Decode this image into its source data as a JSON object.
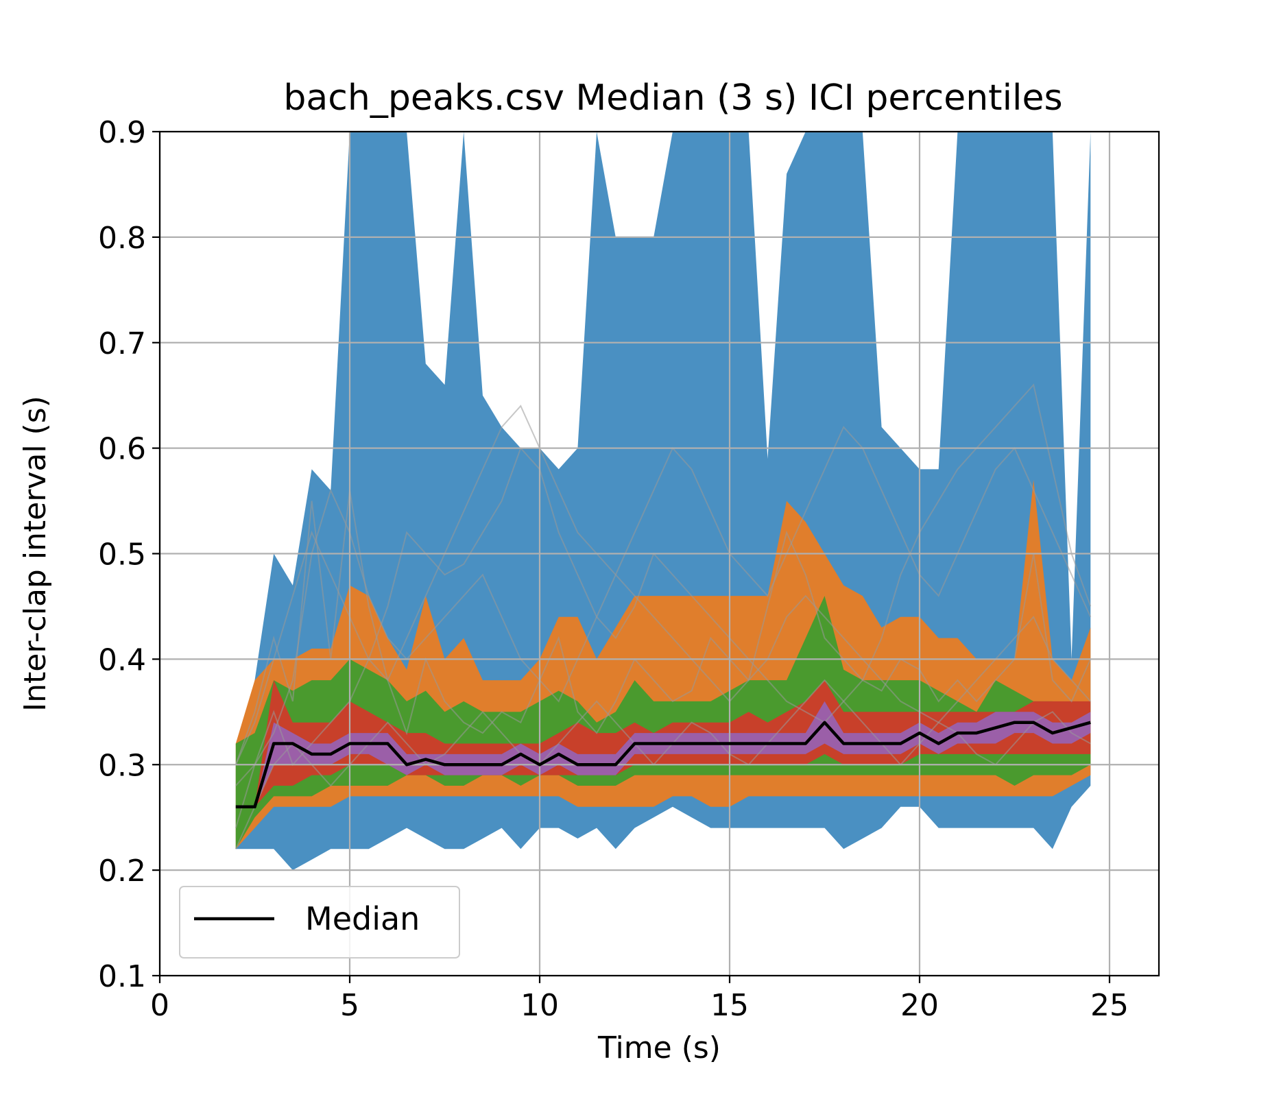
{
  "chart_data": {
    "type": "area",
    "title": "bach_peaks.csv Median (3 s) ICI percentiles",
    "xlabel": "Time (s)",
    "ylabel": "Inter-clap interval (s)",
    "xlim": [
      0,
      26.3
    ],
    "ylim": [
      0.1,
      0.9
    ],
    "xticks": [
      0,
      5,
      10,
      15,
      20,
      25
    ],
    "yticks": [
      0.1,
      0.2,
      0.3,
      0.4,
      0.5,
      0.6,
      0.7,
      0.8,
      0.9
    ],
    "xtick_labels": [
      "0",
      "5",
      "10",
      "15",
      "20",
      "25"
    ],
    "ytick_labels": [
      "0.1",
      "0.2",
      "0.3",
      "0.4",
      "0.5",
      "0.6",
      "0.7",
      "0.8",
      "0.9"
    ],
    "grid": true,
    "legend": {
      "placement": "lower-left",
      "entries": [
        "Median"
      ]
    },
    "x": [
      2.0,
      2.5,
      3.0,
      3.5,
      4.0,
      4.5,
      5.0,
      5.5,
      6.0,
      6.5,
      7.0,
      7.5,
      8.0,
      8.5,
      9.0,
      9.5,
      10.0,
      10.5,
      11.0,
      11.5,
      12.0,
      12.5,
      13.0,
      13.5,
      14.0,
      14.5,
      15.0,
      15.5,
      16.0,
      16.5,
      17.0,
      17.5,
      18.0,
      18.5,
      19.0,
      19.5,
      20.0,
      20.5,
      21.0,
      21.5,
      22.0,
      22.5,
      23.0,
      23.5,
      24.0,
      24.5
    ],
    "bands": [
      {
        "color": "#4a90c2",
        "lower": [
          0.22,
          0.22,
          0.22,
          0.2,
          0.21,
          0.22,
          0.22,
          0.22,
          0.23,
          0.24,
          0.23,
          0.22,
          0.22,
          0.23,
          0.24,
          0.22,
          0.24,
          0.24,
          0.23,
          0.24,
          0.22,
          0.24,
          0.25,
          0.26,
          0.25,
          0.24,
          0.24,
          0.24,
          0.24,
          0.24,
          0.24,
          0.24,
          0.22,
          0.23,
          0.24,
          0.26,
          0.26,
          0.24,
          0.24,
          0.24,
          0.24,
          0.24,
          0.24,
          0.22,
          0.26,
          0.28
        ],
        "upper": [
          0.3,
          0.38,
          0.5,
          0.47,
          0.58,
          0.56,
          0.9,
          0.9,
          0.9,
          0.9,
          0.68,
          0.66,
          0.9,
          0.65,
          0.62,
          0.6,
          0.6,
          0.58,
          0.6,
          0.9,
          0.8,
          0.8,
          0.8,
          0.9,
          0.9,
          0.9,
          0.9,
          0.9,
          0.59,
          0.86,
          0.9,
          0.9,
          0.9,
          0.9,
          0.62,
          0.6,
          0.58,
          0.58,
          0.9,
          0.9,
          0.9,
          0.9,
          0.9,
          0.9,
          0.4,
          0.9
        ]
      },
      {
        "color": "#e07e2c",
        "lower": [
          0.22,
          0.24,
          0.26,
          0.26,
          0.26,
          0.26,
          0.27,
          0.27,
          0.27,
          0.27,
          0.27,
          0.27,
          0.27,
          0.27,
          0.27,
          0.27,
          0.27,
          0.27,
          0.26,
          0.26,
          0.26,
          0.26,
          0.26,
          0.27,
          0.27,
          0.26,
          0.26,
          0.27,
          0.27,
          0.27,
          0.27,
          0.27,
          0.27,
          0.27,
          0.27,
          0.27,
          0.27,
          0.27,
          0.27,
          0.27,
          0.27,
          0.27,
          0.27,
          0.27,
          0.28,
          0.29
        ],
        "upper": [
          0.32,
          0.38,
          0.4,
          0.4,
          0.41,
          0.41,
          0.47,
          0.46,
          0.42,
          0.39,
          0.46,
          0.4,
          0.42,
          0.38,
          0.38,
          0.38,
          0.4,
          0.44,
          0.44,
          0.4,
          0.43,
          0.46,
          0.46,
          0.46,
          0.46,
          0.46,
          0.46,
          0.46,
          0.46,
          0.55,
          0.53,
          0.5,
          0.47,
          0.46,
          0.43,
          0.44,
          0.44,
          0.42,
          0.42,
          0.4,
          0.4,
          0.4,
          0.57,
          0.4,
          0.38,
          0.43
        ]
      },
      {
        "color": "#4a9a2e",
        "lower": [
          0.22,
          0.25,
          0.27,
          0.27,
          0.27,
          0.28,
          0.28,
          0.28,
          0.28,
          0.29,
          0.29,
          0.28,
          0.28,
          0.29,
          0.29,
          0.28,
          0.29,
          0.29,
          0.28,
          0.28,
          0.28,
          0.29,
          0.29,
          0.29,
          0.29,
          0.29,
          0.29,
          0.29,
          0.29,
          0.29,
          0.29,
          0.29,
          0.29,
          0.29,
          0.29,
          0.29,
          0.29,
          0.29,
          0.29,
          0.29,
          0.29,
          0.28,
          0.29,
          0.29,
          0.29,
          0.3
        ],
        "upper": [
          0.32,
          0.33,
          0.38,
          0.37,
          0.38,
          0.38,
          0.4,
          0.39,
          0.38,
          0.36,
          0.37,
          0.35,
          0.36,
          0.35,
          0.35,
          0.35,
          0.36,
          0.37,
          0.36,
          0.34,
          0.35,
          0.38,
          0.36,
          0.36,
          0.36,
          0.36,
          0.37,
          0.38,
          0.38,
          0.38,
          0.42,
          0.46,
          0.39,
          0.38,
          0.38,
          0.38,
          0.38,
          0.37,
          0.36,
          0.35,
          0.38,
          0.37,
          0.36,
          0.36,
          0.35,
          0.36
        ]
      },
      {
        "color": "#c8402a",
        "lower": [
          0.26,
          0.26,
          0.28,
          0.28,
          0.29,
          0.29,
          0.3,
          0.3,
          0.3,
          0.29,
          0.29,
          0.29,
          0.29,
          0.29,
          0.29,
          0.29,
          0.29,
          0.29,
          0.29,
          0.29,
          0.29,
          0.3,
          0.3,
          0.3,
          0.3,
          0.3,
          0.3,
          0.3,
          0.3,
          0.3,
          0.3,
          0.31,
          0.3,
          0.3,
          0.3,
          0.3,
          0.31,
          0.31,
          0.31,
          0.31,
          0.31,
          0.31,
          0.31,
          0.31,
          0.31,
          0.31
        ],
        "upper": [
          0.26,
          0.26,
          0.38,
          0.34,
          0.34,
          0.34,
          0.36,
          0.35,
          0.34,
          0.33,
          0.33,
          0.32,
          0.32,
          0.32,
          0.32,
          0.32,
          0.32,
          0.33,
          0.34,
          0.33,
          0.33,
          0.34,
          0.33,
          0.34,
          0.34,
          0.34,
          0.34,
          0.35,
          0.34,
          0.35,
          0.36,
          0.38,
          0.35,
          0.35,
          0.35,
          0.35,
          0.35,
          0.35,
          0.35,
          0.35,
          0.35,
          0.35,
          0.36,
          0.36,
          0.36,
          0.36
        ]
      },
      {
        "color": "#9b5fa8",
        "lower": [
          0.26,
          0.26,
          0.3,
          0.3,
          0.3,
          0.3,
          0.31,
          0.31,
          0.3,
          0.29,
          0.3,
          0.29,
          0.29,
          0.29,
          0.29,
          0.3,
          0.29,
          0.3,
          0.29,
          0.29,
          0.29,
          0.31,
          0.31,
          0.31,
          0.31,
          0.31,
          0.31,
          0.31,
          0.31,
          0.31,
          0.31,
          0.32,
          0.31,
          0.31,
          0.31,
          0.31,
          0.32,
          0.31,
          0.32,
          0.32,
          0.32,
          0.33,
          0.33,
          0.32,
          0.32,
          0.33
        ],
        "upper": [
          0.26,
          0.26,
          0.34,
          0.33,
          0.32,
          0.32,
          0.33,
          0.33,
          0.33,
          0.31,
          0.31,
          0.31,
          0.31,
          0.31,
          0.31,
          0.32,
          0.31,
          0.32,
          0.31,
          0.31,
          0.31,
          0.33,
          0.33,
          0.33,
          0.33,
          0.33,
          0.33,
          0.33,
          0.33,
          0.33,
          0.33,
          0.36,
          0.33,
          0.33,
          0.33,
          0.33,
          0.34,
          0.33,
          0.34,
          0.34,
          0.35,
          0.35,
          0.35,
          0.34,
          0.34,
          0.35
        ]
      }
    ],
    "series": [
      {
        "name": "Median",
        "color": "#000000",
        "values": [
          0.26,
          0.26,
          0.32,
          0.32,
          0.31,
          0.31,
          0.32,
          0.32,
          0.32,
          0.3,
          0.305,
          0.3,
          0.3,
          0.3,
          0.3,
          0.31,
          0.3,
          0.31,
          0.3,
          0.3,
          0.3,
          0.32,
          0.32,
          0.32,
          0.32,
          0.32,
          0.32,
          0.32,
          0.32,
          0.32,
          0.32,
          0.34,
          0.32,
          0.32,
          0.32,
          0.32,
          0.33,
          0.32,
          0.33,
          0.33,
          0.335,
          0.34,
          0.34,
          0.33,
          0.335,
          0.34
        ]
      }
    ],
    "individual_traces": {
      "color": "#999999",
      "traces": [
        [
          0.3,
          0.35,
          0.42,
          0.36,
          0.55,
          0.4,
          0.56,
          0.45,
          0.38,
          0.33,
          0.4,
          0.36,
          0.34,
          0.33,
          0.35,
          0.34,
          0.38,
          0.42,
          0.35,
          0.33,
          0.36,
          0.4,
          0.38,
          0.36,
          0.37,
          0.42,
          0.4,
          0.38,
          0.45,
          0.52,
          0.48,
          0.42,
          0.4,
          0.38,
          0.37,
          0.4,
          0.39,
          0.36,
          0.38,
          0.36,
          0.38,
          0.4,
          0.5,
          0.38,
          0.36,
          0.4
        ],
        [
          0.24,
          0.3,
          0.35,
          0.3,
          0.32,
          0.34,
          0.36,
          0.4,
          0.45,
          0.52,
          0.5,
          0.48,
          0.49,
          0.52,
          0.55,
          0.6,
          0.58,
          0.52,
          0.48,
          0.44,
          0.42,
          0.45,
          0.5,
          0.48,
          0.46,
          0.44,
          0.42,
          0.4,
          0.38,
          0.36,
          0.35,
          0.34,
          0.36,
          0.38,
          0.42,
          0.48,
          0.52,
          0.55,
          0.58,
          0.6,
          0.62,
          0.64,
          0.66,
          0.58,
          0.5,
          0.45
        ],
        [
          0.28,
          0.3,
          0.33,
          0.38,
          0.5,
          0.56,
          0.52,
          0.46,
          0.42,
          0.4,
          0.42,
          0.44,
          0.46,
          0.48,
          0.44,
          0.4,
          0.38,
          0.36,
          0.4,
          0.44,
          0.48,
          0.46,
          0.44,
          0.42,
          0.4,
          0.38,
          0.36,
          0.38,
          0.4,
          0.44,
          0.46,
          0.44,
          0.42,
          0.4,
          0.38,
          0.36,
          0.35,
          0.34,
          0.36,
          0.38,
          0.4,
          0.42,
          0.44,
          0.4,
          0.38,
          0.36
        ],
        [
          0.22,
          0.26,
          0.3,
          0.32,
          0.3,
          0.28,
          0.3,
          0.32,
          0.34,
          0.32,
          0.3,
          0.31,
          0.33,
          0.35,
          0.33,
          0.31,
          0.3,
          0.32,
          0.34,
          0.36,
          0.34,
          0.32,
          0.3,
          0.32,
          0.34,
          0.33,
          0.31,
          0.3,
          0.32,
          0.34,
          0.36,
          0.38,
          0.36,
          0.34,
          0.32,
          0.3,
          0.32,
          0.34,
          0.33,
          0.31,
          0.3,
          0.32,
          0.34,
          0.35,
          0.33,
          0.32
        ],
        [
          0.3,
          0.34,
          0.4,
          0.46,
          0.52,
          0.48,
          0.44,
          0.4,
          0.38,
          0.42,
          0.46,
          0.5,
          0.54,
          0.58,
          0.62,
          0.64,
          0.6,
          0.56,
          0.52,
          0.5,
          0.48,
          0.52,
          0.56,
          0.6,
          0.58,
          0.54,
          0.5,
          0.48,
          0.46,
          0.5,
          0.54,
          0.58,
          0.62,
          0.6,
          0.56,
          0.52,
          0.48,
          0.46,
          0.5,
          0.54,
          0.58,
          0.6,
          0.56,
          0.52,
          0.48,
          0.44
        ]
      ]
    }
  }
}
